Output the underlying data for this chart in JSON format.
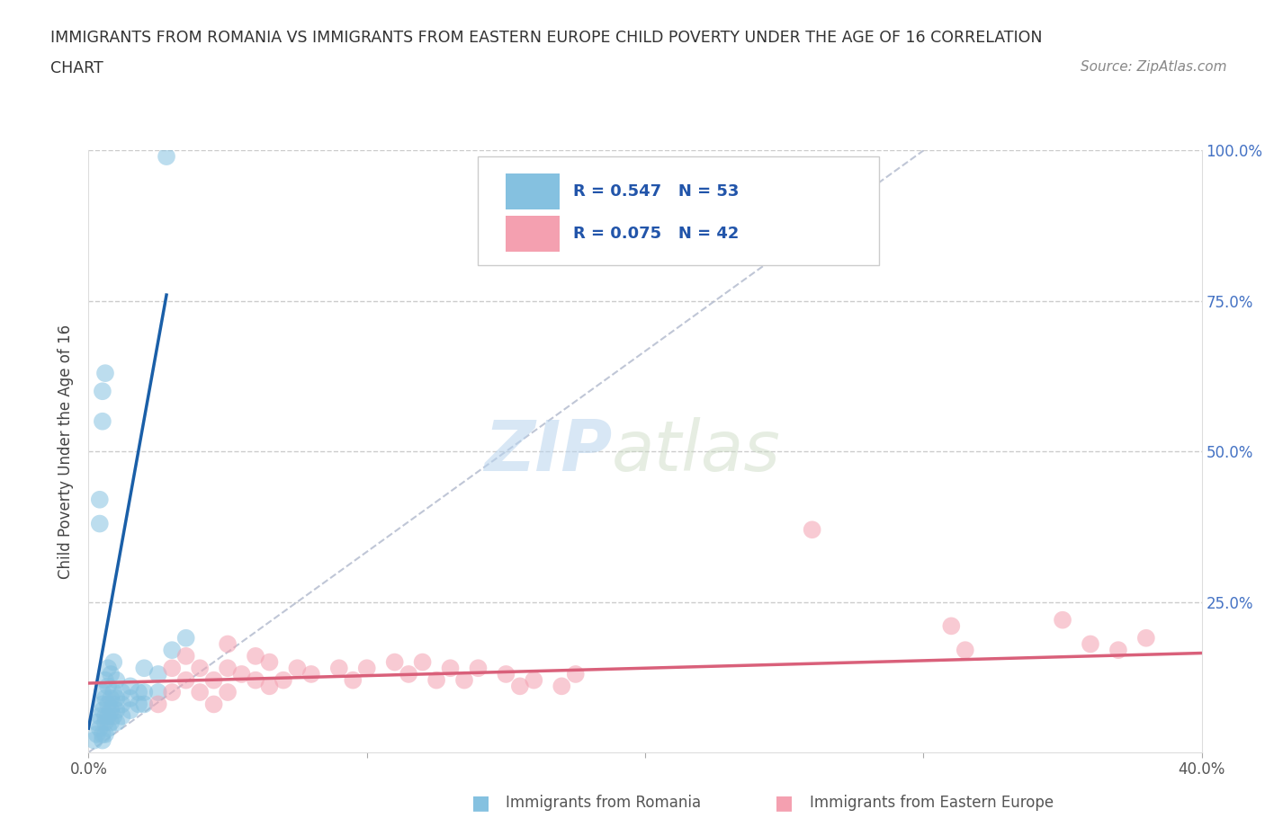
{
  "title_line1": "IMMIGRANTS FROM ROMANIA VS IMMIGRANTS FROM EASTERN EUROPE CHILD POVERTY UNDER THE AGE OF 16 CORRELATION",
  "title_line2": "CHART",
  "source_text": "Source: ZipAtlas.com",
  "ylabel": "Child Poverty Under the Age of 16",
  "xlim": [
    0.0,
    0.4
  ],
  "ylim": [
    0.0,
    1.0
  ],
  "xticks": [
    0.0,
    0.4
  ],
  "xticklabels": [
    "0.0%",
    "40.0%"
  ],
  "yticks": [
    0.25,
    0.5,
    0.75,
    1.0
  ],
  "yticklabels_right": [
    "25.0%",
    "50.0%",
    "75.0%",
    "100.0%"
  ],
  "romania_color": "#85c1e0",
  "eastern_color": "#f4a0b0",
  "romania_R": 0.547,
  "romania_N": 53,
  "eastern_R": 0.075,
  "eastern_N": 42,
  "romania_line_color": "#1a5fa8",
  "eastern_line_color": "#d9607a",
  "diagonal_line_color": "#b0b8cc",
  "watermark_zip": "ZIP",
  "watermark_atlas": "atlas",
  "legend_label_romania": "Immigrants from Romania",
  "legend_label_eastern": "Immigrants from Eastern Europe",
  "romania_scatter": [
    [
      0.002,
      0.02
    ],
    [
      0.003,
      0.03
    ],
    [
      0.003,
      0.05
    ],
    [
      0.004,
      0.04
    ],
    [
      0.004,
      0.06
    ],
    [
      0.005,
      0.02
    ],
    [
      0.005,
      0.03
    ],
    [
      0.005,
      0.07
    ],
    [
      0.005,
      0.08
    ],
    [
      0.005,
      0.1
    ],
    [
      0.006,
      0.03
    ],
    [
      0.006,
      0.05
    ],
    [
      0.006,
      0.06
    ],
    [
      0.006,
      0.09
    ],
    [
      0.006,
      0.12
    ],
    [
      0.007,
      0.04
    ],
    [
      0.007,
      0.06
    ],
    [
      0.007,
      0.08
    ],
    [
      0.007,
      0.11
    ],
    [
      0.007,
      0.14
    ],
    [
      0.008,
      0.05
    ],
    [
      0.008,
      0.07
    ],
    [
      0.008,
      0.09
    ],
    [
      0.008,
      0.13
    ],
    [
      0.009,
      0.06
    ],
    [
      0.009,
      0.08
    ],
    [
      0.009,
      0.1
    ],
    [
      0.009,
      0.15
    ],
    [
      0.01,
      0.05
    ],
    [
      0.01,
      0.07
    ],
    [
      0.01,
      0.09
    ],
    [
      0.01,
      0.12
    ],
    [
      0.012,
      0.06
    ],
    [
      0.012,
      0.08
    ],
    [
      0.012,
      0.1
    ],
    [
      0.015,
      0.07
    ],
    [
      0.015,
      0.09
    ],
    [
      0.015,
      0.11
    ],
    [
      0.018,
      0.08
    ],
    [
      0.018,
      0.1
    ],
    [
      0.02,
      0.08
    ],
    [
      0.02,
      0.1
    ],
    [
      0.02,
      0.14
    ],
    [
      0.025,
      0.1
    ],
    [
      0.025,
      0.13
    ],
    [
      0.004,
      0.38
    ],
    [
      0.004,
      0.42
    ],
    [
      0.005,
      0.55
    ],
    [
      0.005,
      0.6
    ],
    [
      0.006,
      0.63
    ],
    [
      0.03,
      0.17
    ],
    [
      0.035,
      0.19
    ],
    [
      0.028,
      0.99
    ]
  ],
  "eastern_scatter": [
    [
      0.025,
      0.08
    ],
    [
      0.03,
      0.1
    ],
    [
      0.03,
      0.14
    ],
    [
      0.035,
      0.12
    ],
    [
      0.035,
      0.16
    ],
    [
      0.04,
      0.1
    ],
    [
      0.04,
      0.14
    ],
    [
      0.045,
      0.08
    ],
    [
      0.045,
      0.12
    ],
    [
      0.05,
      0.1
    ],
    [
      0.05,
      0.14
    ],
    [
      0.05,
      0.18
    ],
    [
      0.055,
      0.13
    ],
    [
      0.06,
      0.12
    ],
    [
      0.06,
      0.16
    ],
    [
      0.065,
      0.11
    ],
    [
      0.065,
      0.15
    ],
    [
      0.07,
      0.12
    ],
    [
      0.075,
      0.14
    ],
    [
      0.08,
      0.13
    ],
    [
      0.09,
      0.14
    ],
    [
      0.095,
      0.12
    ],
    [
      0.1,
      0.14
    ],
    [
      0.11,
      0.15
    ],
    [
      0.115,
      0.13
    ],
    [
      0.12,
      0.15
    ],
    [
      0.125,
      0.12
    ],
    [
      0.13,
      0.14
    ],
    [
      0.135,
      0.12
    ],
    [
      0.14,
      0.14
    ],
    [
      0.15,
      0.13
    ],
    [
      0.155,
      0.11
    ],
    [
      0.16,
      0.12
    ],
    [
      0.17,
      0.11
    ],
    [
      0.175,
      0.13
    ],
    [
      0.26,
      0.37
    ],
    [
      0.31,
      0.21
    ],
    [
      0.315,
      0.17
    ],
    [
      0.35,
      0.22
    ],
    [
      0.36,
      0.18
    ],
    [
      0.37,
      0.17
    ],
    [
      0.38,
      0.19
    ]
  ]
}
